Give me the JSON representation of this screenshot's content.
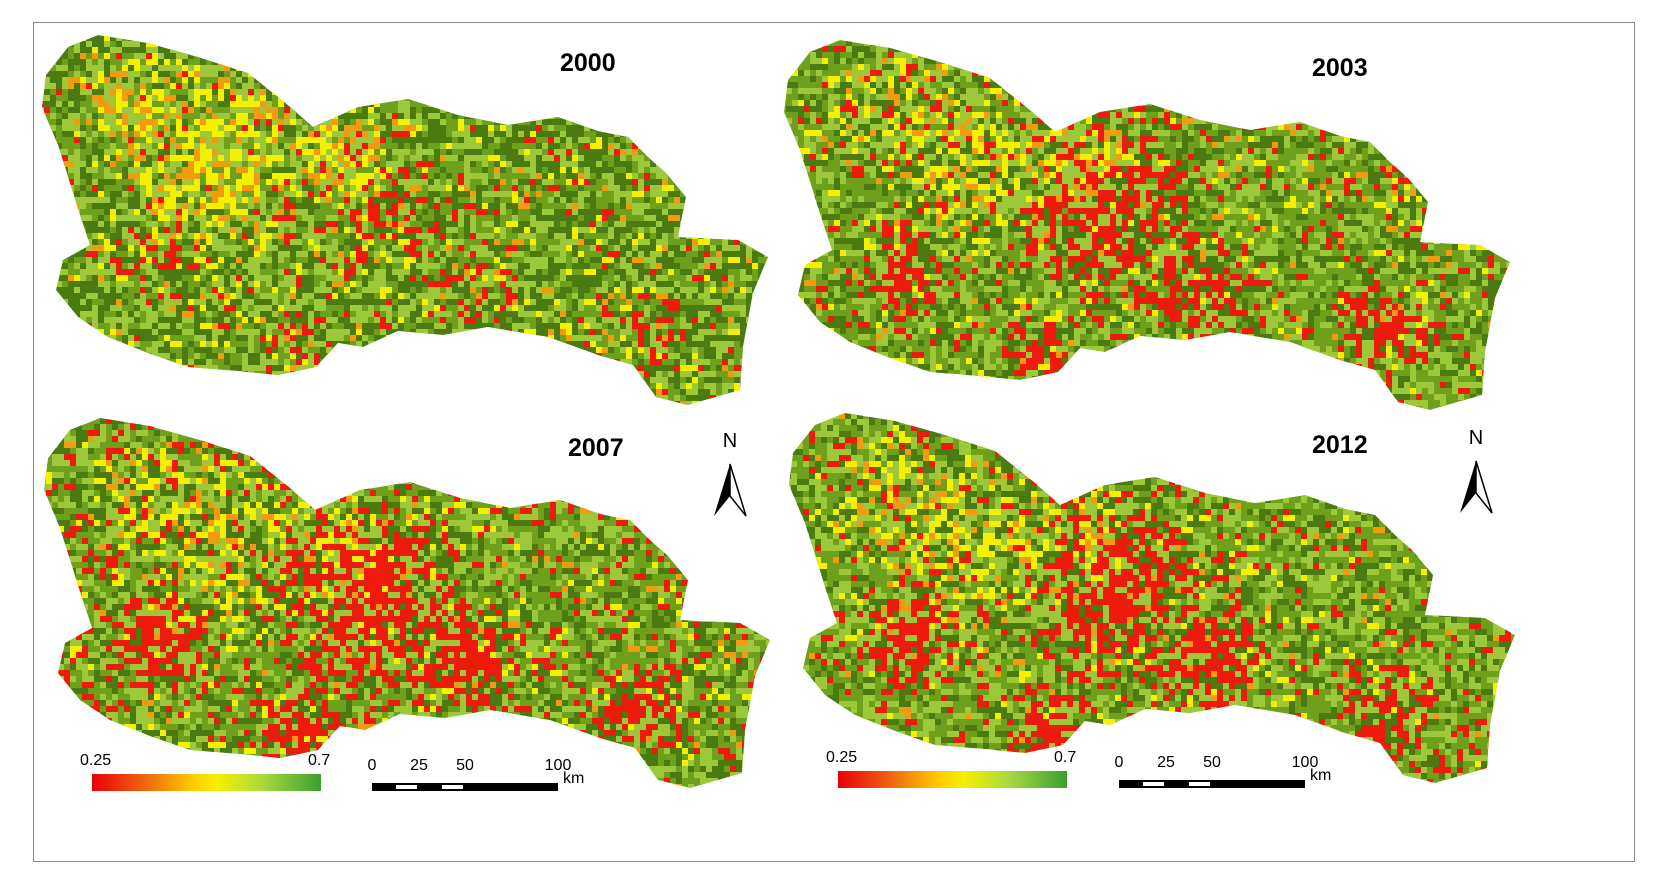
{
  "panels": [
    {
      "year": "2000",
      "variant": 0
    },
    {
      "year": "2003",
      "variant": 1
    },
    {
      "year": "2007",
      "variant": 2
    },
    {
      "year": "2012",
      "variant": 3
    }
  ],
  "north_label": "N",
  "legend": {
    "min_label": "0.25",
    "max_label": "0.7",
    "min_value": 0.25,
    "max_value": 0.7
  },
  "scalebar": {
    "ticks": [
      "0",
      "25",
      "50",
      "100"
    ],
    "unit": "km"
  },
  "colors": {
    "dark_green": "#4a7a10",
    "green": "#6ea01c",
    "light_green": "#9cc83a",
    "yellow": "#f4f000",
    "orange": "#f29a10",
    "red": "#ee1a0c",
    "frame": "#8a8a8a"
  }
}
